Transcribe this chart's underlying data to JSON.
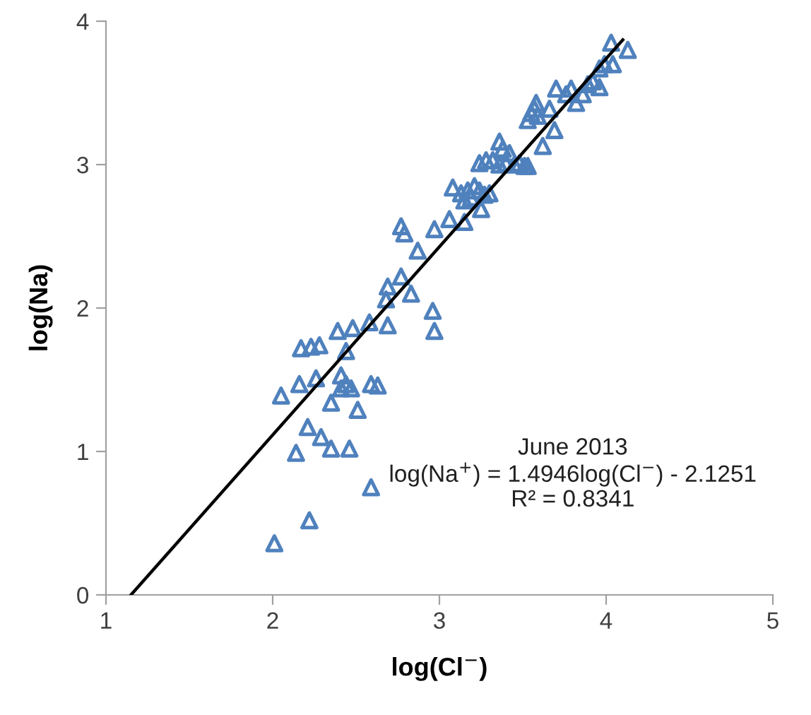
{
  "chart_data": {
    "type": "scatter",
    "xlabel": "log(Cl$^{−}$)",
    "ylabel": "log(Na)",
    "xlim": [
      1,
      5
    ],
    "ylim": [
      0,
      4
    ],
    "xticks": [
      1,
      2,
      3,
      4,
      5
    ],
    "yticks": [
      0,
      1,
      2,
      3,
      4
    ],
    "grid": false,
    "legend": false,
    "annotations": [
      "June 2013\nlog(Na$^{+}$) = 1.4946log(Cl$^{−}$) - 2.1251\nR² = 0.8341"
    ],
    "series": [
      {
        "color": "#4f81bd",
        "marker": "triangle",
        "x": [
          2.01,
          2.22,
          2.59,
          2.14,
          2.35,
          2.46,
          2.21,
          2.29,
          2.51,
          2.35,
          2.05,
          2.16,
          2.26,
          2.41,
          2.44,
          2.47,
          2.41,
          2.59,
          2.63,
          2.44,
          2.39,
          2.48,
          2.17,
          2.23,
          2.28,
          2.58,
          2.69,
          2.68,
          2.69,
          2.83,
          2.97,
          2.96,
          2.87,
          2.77,
          2.77,
          2.79,
          2.97,
          3.06,
          3.15,
          3.25,
          3.08,
          3.13,
          3.17,
          3.21,
          3.24,
          3.27,
          3.3,
          3.19,
          3.15,
          3.24,
          3.28,
          3.32,
          3.36,
          3.38,
          3.36,
          3.4,
          3.42,
          3.45,
          3.48,
          3.51,
          3.53,
          3.62,
          3.69,
          3.53,
          3.57,
          3.58,
          3.59,
          3.55,
          3.66,
          3.7,
          3.76,
          3.79,
          3.82,
          3.86,
          3.89,
          3.92,
          3.96,
          3.96,
          3.99,
          4.04,
          4.03,
          4.13
        ],
        "values": [
          0.36,
          0.52,
          0.75,
          0.99,
          1.02,
          1.02,
          1.17,
          1.1,
          1.29,
          1.34,
          1.39,
          1.47,
          1.51,
          1.53,
          1.47,
          1.44,
          1.44,
          1.47,
          1.46,
          1.7,
          1.84,
          1.86,
          1.72,
          1.73,
          1.74,
          1.9,
          1.88,
          2.06,
          2.15,
          2.1,
          1.84,
          1.98,
          2.4,
          2.22,
          2.57,
          2.52,
          2.55,
          2.62,
          2.6,
          2.69,
          2.84,
          2.8,
          2.82,
          2.85,
          2.82,
          2.79,
          2.8,
          2.77,
          2.75,
          3.01,
          3.03,
          3.03,
          3.16,
          3.11,
          3.0,
          3.01,
          3.08,
          3.0,
          3.01,
          2.99,
          2.99,
          3.13,
          3.24,
          3.31,
          3.39,
          3.43,
          3.34,
          3.36,
          3.39,
          3.53,
          3.49,
          3.53,
          3.43,
          3.49,
          3.56,
          3.58,
          3.54,
          3.67,
          3.7,
          3.7,
          3.85,
          3.8
        ]
      },
      {
        "type": "line",
        "color": "#000000",
        "line_style": "solid",
        "marker": "none",
        "x": [
          1.15,
          4.1
        ],
        "values": [
          0,
          3.87
        ]
      }
    ]
  }
}
